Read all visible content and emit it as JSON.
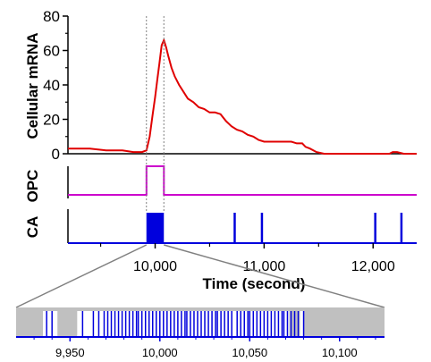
{
  "colors": {
    "mrna": "#e00000",
    "opc": "#cc00cc",
    "ca": "#0000dd",
    "axis": "#000000",
    "zoom_fill": "#c0c0c0",
    "guide": "#808080"
  },
  "chart_data": [
    {
      "id": "mrna",
      "type": "line",
      "ylabel": "Cellular mRNA",
      "ylim": [
        0,
        80
      ],
      "yticks": [
        "0",
        "20",
        "40",
        "60",
        "80"
      ],
      "xlim": [
        9200,
        12400
      ],
      "series": [
        {
          "x": [
            9200,
            9400,
            9550,
            9700,
            9800,
            9880,
            9920,
            9950,
            9975,
            10000,
            10020,
            10040,
            10060,
            10080,
            10100,
            10120,
            10150,
            10180,
            10220,
            10260,
            10300,
            10350,
            10400,
            10450,
            10500,
            10550,
            10600,
            10650,
            10700,
            10750,
            10800,
            10850,
            10900,
            10950,
            11000,
            11050,
            11100,
            11150,
            11200,
            11250,
            11300,
            11350,
            11380,
            11420,
            11480,
            11550,
            11650,
            11750,
            11850,
            11950,
            12000,
            12100,
            12150,
            12180,
            12220,
            12280,
            12400
          ],
          "y": [
            3,
            3,
            2,
            2,
            1,
            1,
            2,
            10,
            22,
            33,
            43,
            53,
            63,
            66,
            62,
            57,
            50,
            45,
            40,
            36,
            32,
            30,
            27,
            26,
            24,
            24,
            23,
            19,
            16,
            14,
            13,
            11,
            10,
            8,
            7,
            7,
            7,
            7,
            7,
            7,
            6,
            6,
            4,
            3,
            1,
            0,
            0,
            0,
            0,
            0,
            0,
            0,
            0,
            1,
            1,
            0,
            0
          ]
        }
      ]
    },
    {
      "id": "opc",
      "type": "line",
      "ylabel": "OPC",
      "xlim": [
        9200,
        12400
      ],
      "series": [
        {
          "x": [
            9200,
            9920,
            9920,
            10080,
            10080,
            12400
          ],
          "y": [
            0,
            0,
            1,
            1,
            0,
            0
          ]
        }
      ]
    },
    {
      "id": "ca",
      "type": "bar",
      "ylabel": "CA",
      "xlim": [
        9200,
        12400
      ],
      "xticks": [
        "10,000",
        "11,000",
        "12,000"
      ],
      "xlabel": "Time (second)",
      "burst": [
        9920,
        10080
      ],
      "spikes": [
        10730,
        10980,
        12020,
        12260
      ]
    },
    {
      "id": "zoom",
      "type": "bar",
      "xlim": [
        9920,
        10125
      ],
      "xticks": [
        "9,950",
        "10,000",
        "10,050",
        "10,100"
      ],
      "zoomed_region": [
        9920,
        10080
      ],
      "events": [
        9937,
        9940,
        9957,
        9963,
        9966,
        9969,
        9971,
        9973,
        9975,
        9977,
        9979,
        9981,
        9983,
        9985,
        9987,
        9988,
        9990,
        9992,
        9994,
        9996,
        9998,
        10000,
        10002,
        10004,
        10006,
        10008,
        10010,
        10012,
        10014,
        10015,
        10017,
        10019,
        10021,
        10023,
        10025,
        10027,
        10029,
        10031,
        10032,
        10034,
        10036,
        10038,
        10040,
        10043,
        10045,
        10047,
        10049,
        10050,
        10052,
        10054,
        10056,
        10058,
        10060,
        10062,
        10064,
        10066,
        10068,
        10069,
        10071,
        10073,
        10075,
        10077,
        10080
      ],
      "gaps": [
        [
          9943,
          9954
        ],
        [
          10072,
          10078
        ]
      ]
    }
  ]
}
